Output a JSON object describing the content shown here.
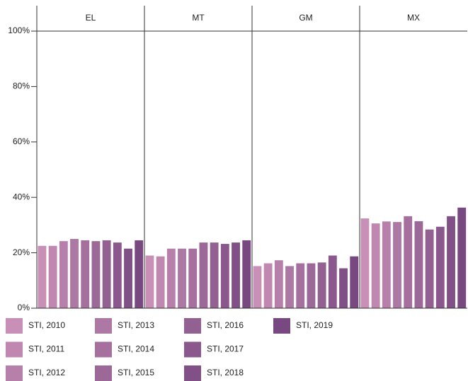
{
  "chart_data": {
    "type": "bar",
    "categories": [
      "EL",
      "MT",
      "GM",
      "MX"
    ],
    "ylim": [
      0,
      100
    ],
    "yticks": [
      {
        "value": 0,
        "label": "0%"
      },
      {
        "value": 20,
        "label": "20%"
      },
      {
        "value": 40,
        "label": "40%"
      },
      {
        "value": 60,
        "label": "60%"
      },
      {
        "value": 80,
        "label": "80%"
      },
      {
        "value": 100,
        "label": "100%"
      }
    ],
    "series": [
      {
        "name": "STI, 2010",
        "color": "#c890b6",
        "values": [
          22.5,
          19,
          15.2,
          32.4
        ]
      },
      {
        "name": "STI, 2011",
        "color": "#c088b0",
        "values": [
          22.5,
          18.7,
          16.2,
          30.6
        ]
      },
      {
        "name": "STI, 2012",
        "color": "#b780aa",
        "values": [
          24.2,
          21.5,
          17.3,
          31.3
        ]
      },
      {
        "name": "STI, 2013",
        "color": "#ae78a4",
        "values": [
          25,
          21.5,
          15.2,
          31.1
        ]
      },
      {
        "name": "STI, 2014",
        "color": "#a5709e",
        "values": [
          24.5,
          21.5,
          16.2,
          33.2
        ]
      },
      {
        "name": "STI, 2015",
        "color": "#9c6898",
        "values": [
          24.2,
          23.7,
          16.2,
          31.4
        ]
      },
      {
        "name": "STI, 2016",
        "color": "#936092",
        "values": [
          24.5,
          23.7,
          16.5,
          28.4
        ]
      },
      {
        "name": "STI, 2017",
        "color": "#8a588c",
        "values": [
          23.7,
          23.2,
          19,
          29.4
        ]
      },
      {
        "name": "STI, 2018",
        "color": "#815086",
        "values": [
          21.5,
          23.7,
          14.4,
          33.2
        ]
      },
      {
        "name": "STI, 2019",
        "color": "#784880",
        "values": [
          24.5,
          24.5,
          18.7,
          36.3
        ]
      }
    ]
  }
}
